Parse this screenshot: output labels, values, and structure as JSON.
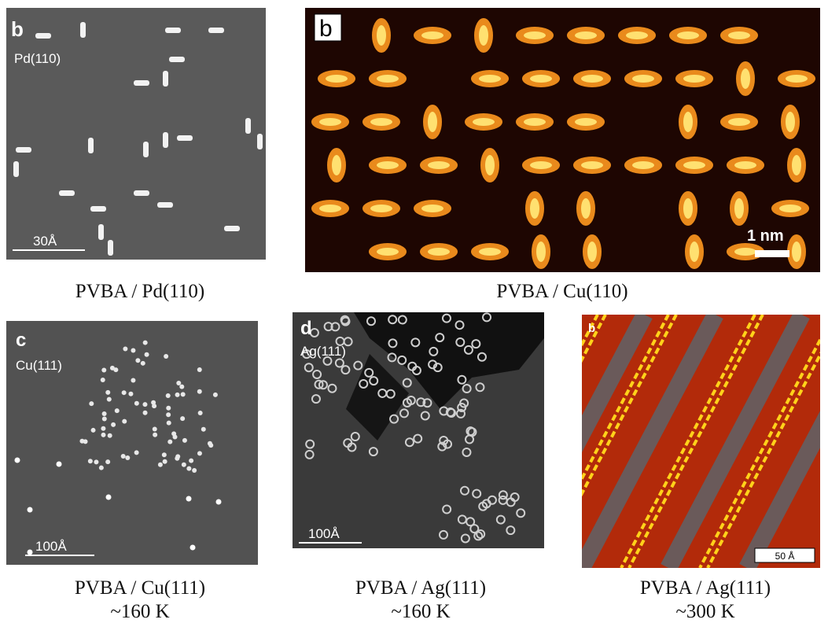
{
  "panels": [
    {
      "label": "b",
      "substrate": "Pd(110)",
      "scale": "30Å",
      "caption": [
        "PVBA / Pd(110)"
      ]
    },
    {
      "label": "b",
      "scale": "1 nm",
      "caption": [
        "PVBA / Cu(110)"
      ]
    },
    {
      "label": "c",
      "substrate": "Cu(111)",
      "scale": "100Å",
      "caption": [
        "PVBA / Cu(111)",
        "~160 K"
      ]
    },
    {
      "label": "d",
      "substrate": "Ag(111)",
      "scale": "100Å",
      "caption": [
        "PVBA / Ag(111)",
        "~160 K"
      ]
    },
    {
      "label": "b",
      "scale": "50 Å",
      "caption": [
        "PVBA / Ag(111)",
        "~300 K"
      ]
    }
  ]
}
